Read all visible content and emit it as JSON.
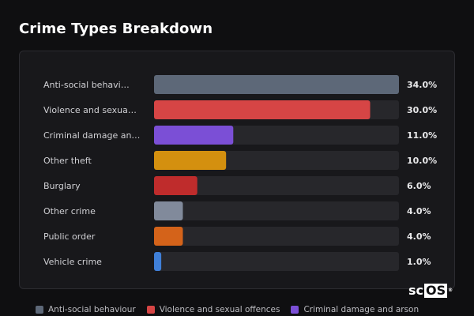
{
  "page": {
    "title": "Crime Types Breakdown",
    "logo": {
      "prefix": "sc",
      "boxed": "OS",
      "mark": "®"
    }
  },
  "chart_data": {
    "type": "bar",
    "orientation": "horizontal",
    "title": "Crime Types Breakdown",
    "xlim": [
      0,
      34
    ],
    "grid": false,
    "legend_position": "bottom-left",
    "categories": [
      "Anti-social behavi…",
      "Violence and sexua…",
      "Criminal damage an…",
      "Other theft",
      "Burglary",
      "Other crime",
      "Public order",
      "Vehicle crime"
    ],
    "values": [
      34.0,
      30.0,
      11.0,
      10.0,
      6.0,
      4.0,
      4.0,
      1.0
    ],
    "value_labels": [
      "34.0%",
      "30.0%",
      "11.0%",
      "10.0%",
      "6.0%",
      "4.0%",
      "4.0%",
      "1.0%"
    ],
    "colors": [
      "#5d6878",
      "#d64545",
      "#7b4fd6",
      "#d4900f",
      "#bf2c2c",
      "#818a9b",
      "#d4631a",
      "#3f7fd8"
    ],
    "track_color": "#27272b",
    "legend": [
      {
        "label": "Anti-social behaviour",
        "color": "#5d6878"
      },
      {
        "label": "Violence and sexual offences",
        "color": "#d64545"
      },
      {
        "label": "Criminal damage and arson",
        "color": "#7b4fd6"
      }
    ]
  }
}
